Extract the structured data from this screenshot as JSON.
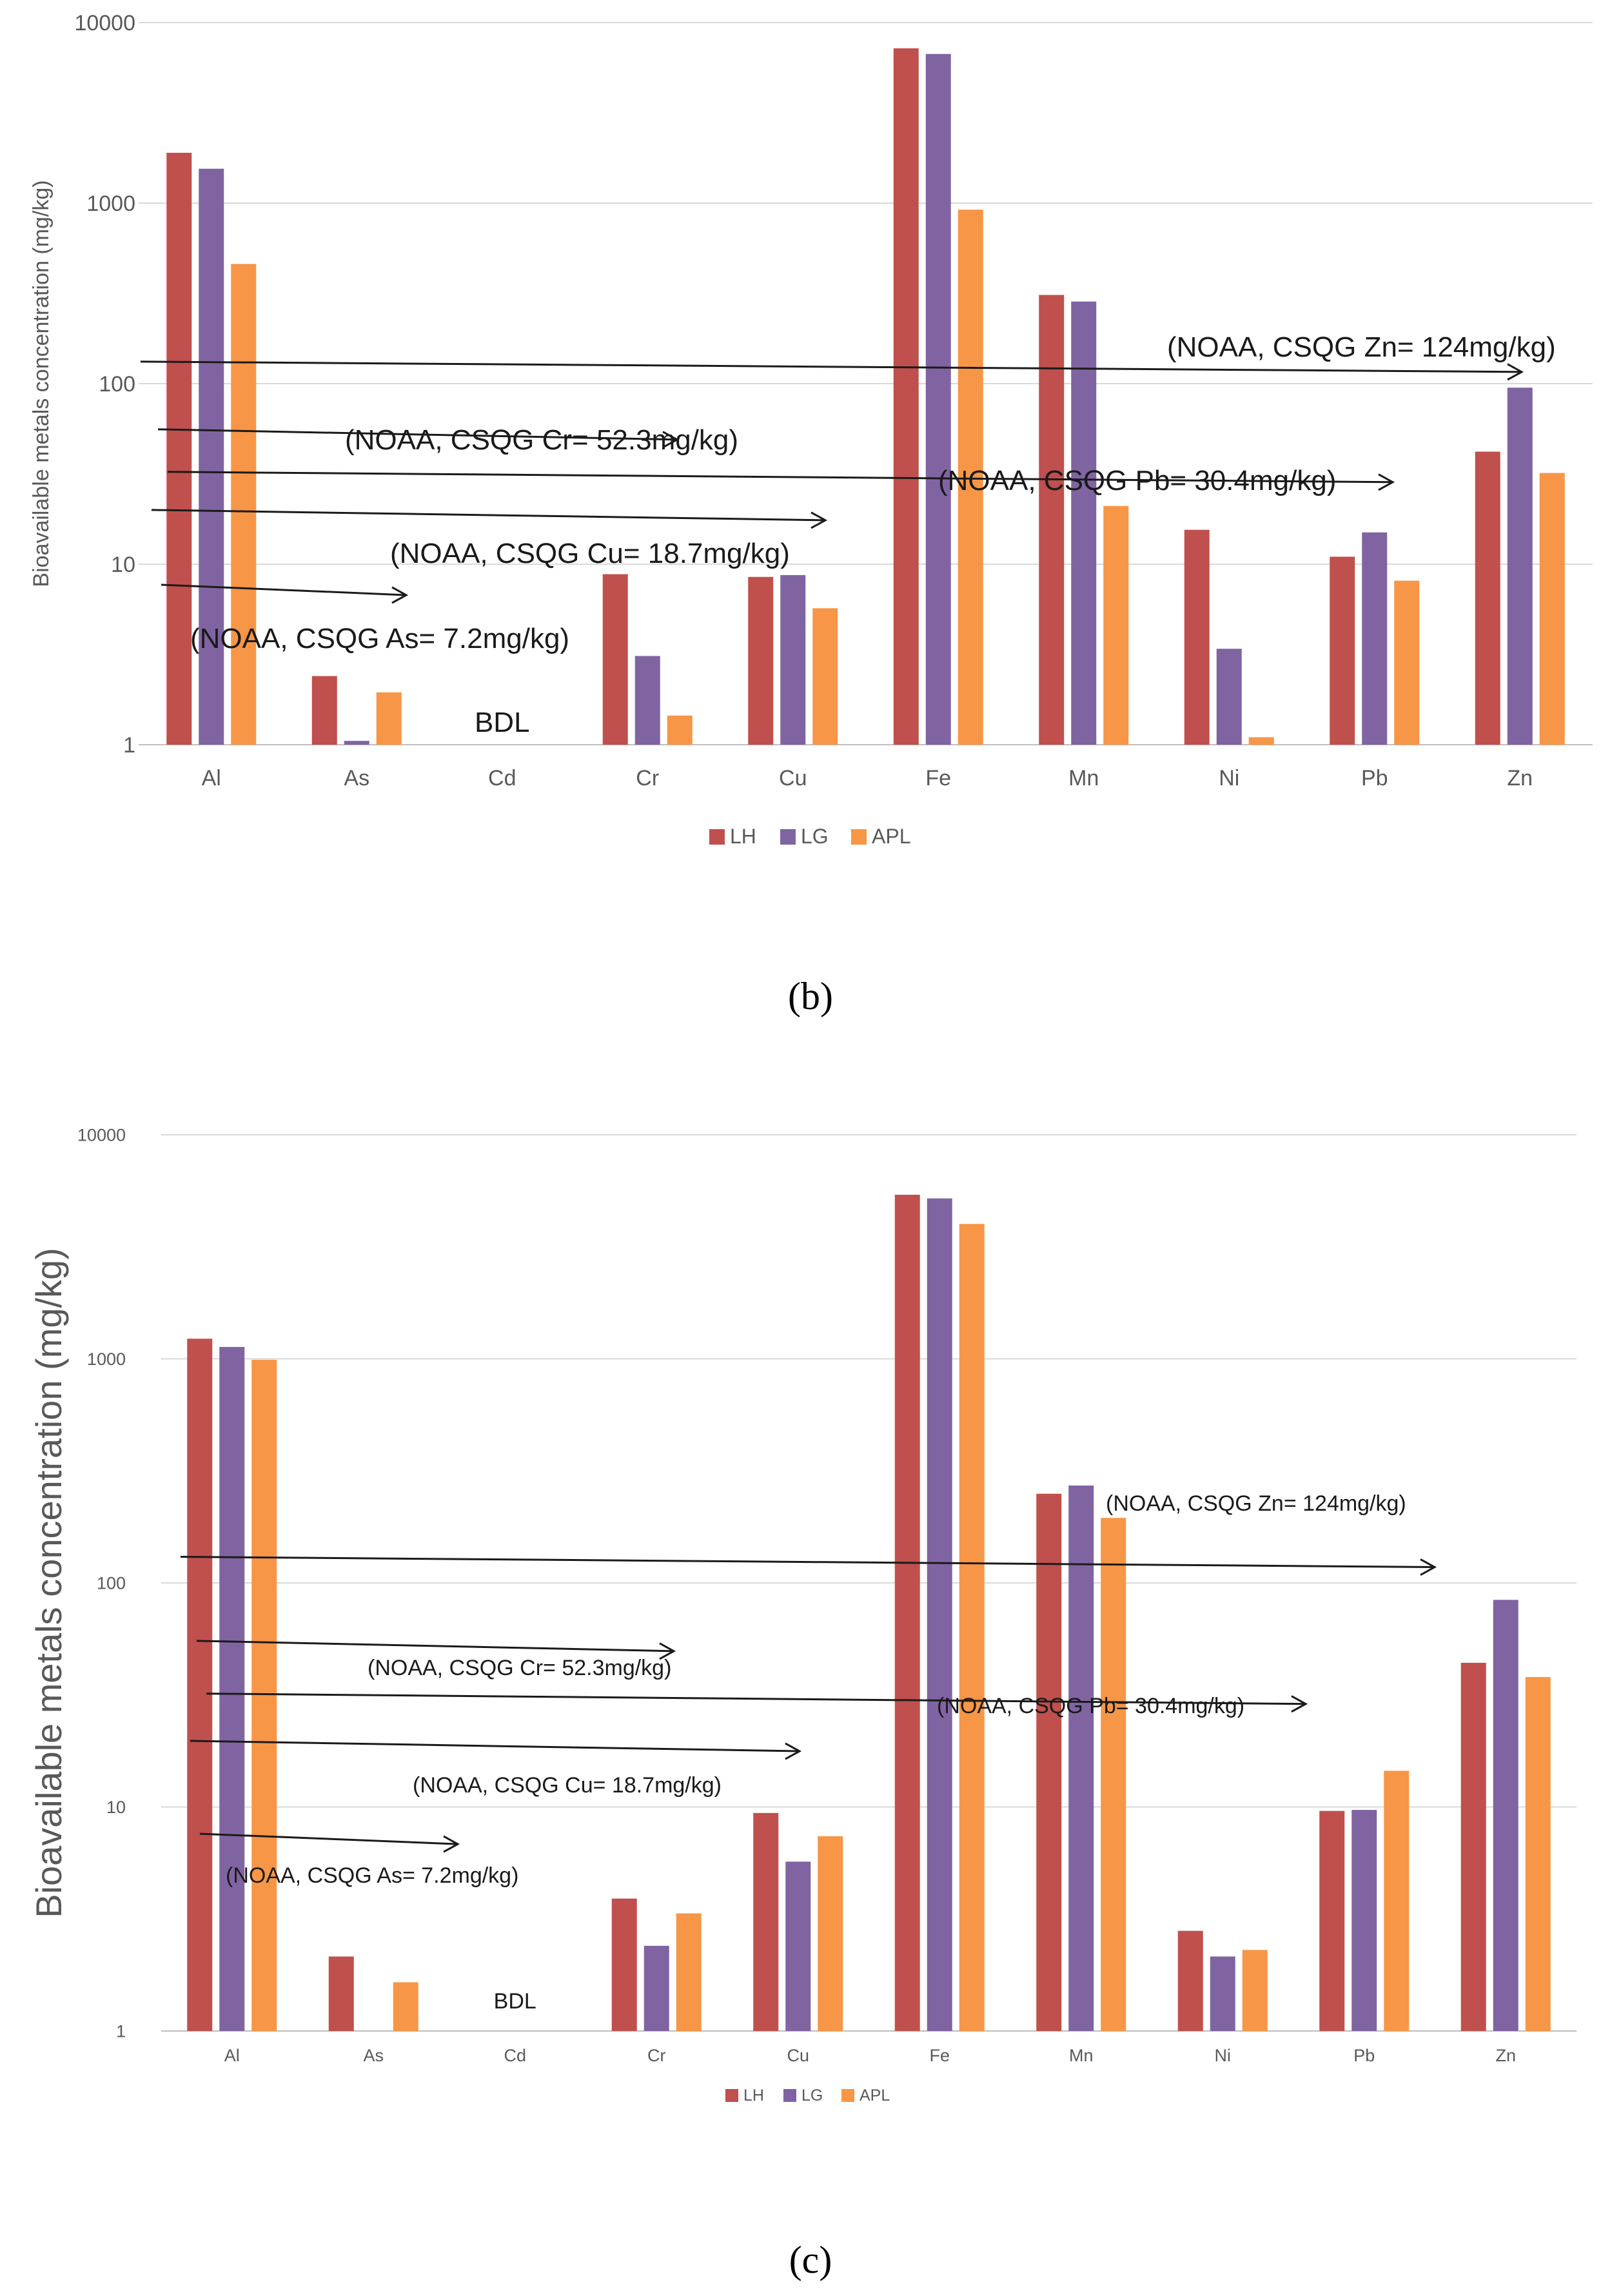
{
  "colors": {
    "LH": "#c0504d",
    "LG": "#8064a2",
    "APL": "#f79646"
  },
  "chart_data": [
    {
      "type": "bar",
      "panel": "b",
      "caption": "(b)",
      "scale": "log10",
      "ylim": [
        1,
        10000
      ],
      "yticks": [
        "1",
        "10",
        "100",
        "1000",
        "10000"
      ],
      "ylabel": "Bioavailable metals concentration (mg/kg)",
      "categories": [
        "Al",
        "As",
        "Cd",
        "Cr",
        "Cu",
        "Fe",
        "Mn",
        "Ni",
        "Pb",
        "Zn"
      ],
      "legend": [
        "LH",
        "LG",
        "APL"
      ],
      "series": [
        {
          "name": "LH",
          "values": [
            1900,
            2.4,
            null,
            8.8,
            8.5,
            7200,
            310,
            15.5,
            11,
            42
          ]
        },
        {
          "name": "LG",
          "values": [
            1550,
            1.05,
            null,
            3.1,
            8.7,
            6700,
            285,
            3.4,
            15,
            95
          ]
        },
        {
          "name": "APL",
          "values": [
            460,
            1.95,
            null,
            1.45,
            5.7,
            920,
            21,
            1.1,
            8.1,
            32
          ]
        }
      ],
      "bdl_label": "BDL",
      "bdl_category": "Cd",
      "guidelines": [
        {
          "label": "(NOAA, CSQG Zn= 124mg/kg)",
          "value": 124
        },
        {
          "label": "(NOAA, CSQG  Cr= 52.3mg/kg)",
          "value": 52.3
        },
        {
          "label": "(NOAA, CSQG Pb= 30.4mg/kg)",
          "value": 30.4
        },
        {
          "label": "(NOAA, CSQG Cu= 18.7mg/kg)",
          "value": 18.7
        },
        {
          "label": "(NOAA, CSQG As= 7.2mg/kg)",
          "value": 7.2
        }
      ]
    },
    {
      "type": "bar",
      "panel": "c",
      "caption": "(c)",
      "scale": "log10",
      "ylim": [
        1,
        10000
      ],
      "yticks": [
        "1",
        "10",
        "100",
        "1000",
        "10000"
      ],
      "ylabel": "Bioavailable metals concentration (mg/kg)",
      "categories": [
        "Al",
        "As",
        "Cd",
        "Cr",
        "Cu",
        "Fe",
        "Mn",
        "Ni",
        "Pb",
        "Zn"
      ],
      "legend": [
        "LH",
        "LG",
        "APL"
      ],
      "series": [
        {
          "name": "LH",
          "values": [
            1230,
            2.15,
            null,
            3.9,
            9.4,
            5400,
            250,
            2.8,
            9.6,
            44
          ]
        },
        {
          "name": "LG",
          "values": [
            1130,
            null,
            null,
            2.4,
            5.7,
            5200,
            272,
            2.15,
            9.7,
            84
          ]
        },
        {
          "name": "APL",
          "values": [
            990,
            1.65,
            null,
            3.35,
            7.4,
            4000,
            195,
            2.3,
            14.5,
            38
          ]
        }
      ],
      "bdl_label": "BDL",
      "bdl_category": "Cd",
      "guidelines": [
        {
          "label": "(NOAA, CSQG Zn= 124mg/kg)",
          "value": 124
        },
        {
          "label": "(NOAA, CSQG  Cr= 52.3mg/kg)",
          "value": 52.3
        },
        {
          "label": "(NOAA, CSQG Pb= 30.4mg/kg)",
          "value": 30.4
        },
        {
          "label": "(NOAA, CSQG Cu= 18.7mg/kg)",
          "value": 18.7
        },
        {
          "label": "(NOAA, CSQG As= 7.2mg/kg)",
          "value": 7.2
        }
      ]
    }
  ]
}
